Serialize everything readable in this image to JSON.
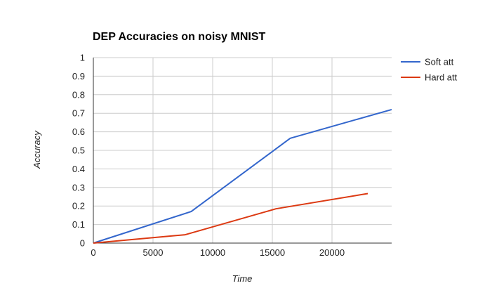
{
  "chart_data": {
    "type": "line",
    "title": "DEP Accuracies on noisy MNIST",
    "xlabel": "Time",
    "ylabel": "Accuracy",
    "xlim": [
      0,
      25000
    ],
    "ylim": [
      0,
      1
    ],
    "x_ticks": [
      "0",
      "5000",
      "10000",
      "15000",
      "20000"
    ],
    "y_ticks": [
      "0",
      "0.1",
      "0.2",
      "0.3",
      "0.4",
      "0.5",
      "0.6",
      "0.7",
      "0.8",
      "0.9",
      "1"
    ],
    "grid": true,
    "legend_position": "right",
    "series": [
      {
        "name": "Soft att",
        "color": "#3366cc",
        "points": [
          [
            0,
            0
          ],
          [
            8200,
            0.17
          ],
          [
            16500,
            0.565
          ],
          [
            25000,
            0.72
          ]
        ]
      },
      {
        "name": "Hard att",
        "color": "#dc3912",
        "points": [
          [
            0,
            0
          ],
          [
            7700,
            0.045
          ],
          [
            15300,
            0.185
          ],
          [
            23000,
            0.267
          ]
        ]
      }
    ]
  }
}
